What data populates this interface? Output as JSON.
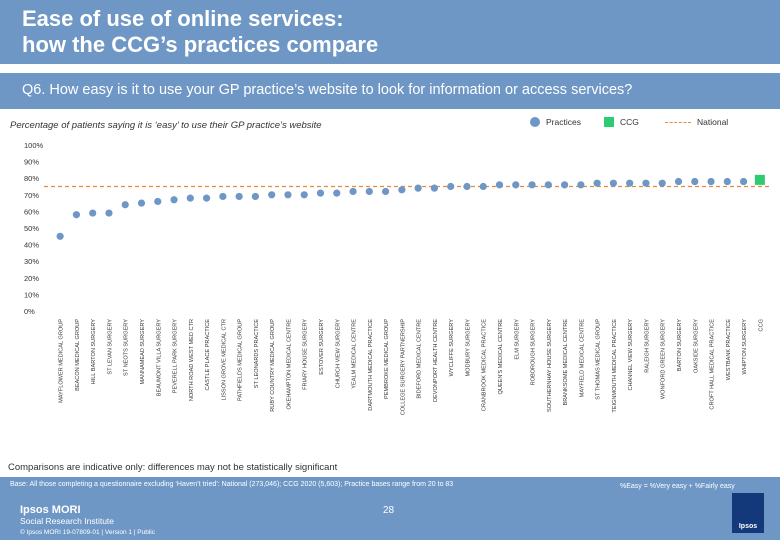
{
  "slide": {
    "title_line1": "Ease of use of online services:",
    "title_line2": "how the CCG’s practices compare",
    "question": "Q6. How easy is it to use your GP practice’s website to look for information or access services?",
    "subtitle": "Percentage of patients saying it is ‘easy’ to use their GP practice’s website",
    "note": "Comparisons are indicative only: differences may not be statistically significant",
    "base": "Base: All those completing a questionnaire excluding ‘Haven’t tried’: National (273,046); CCG 2020 (5,603); Practice bases range from 20 to 83",
    "easy_def": "%Easy = %Very easy + %Fairly easy",
    "page_number": "28",
    "brand_line1": "Ipsos MORI",
    "brand_line2": "Social Research Institute",
    "copyright": "© Ipsos MORI     19-07809-01 | Version 1 | Public",
    "logo_text": "Ipsos"
  },
  "legend": {
    "practices": "Practices",
    "ccg": "CCG",
    "national": "National"
  },
  "colors": {
    "header": "#6e97c6",
    "practice_point": "#6e97c6",
    "ccg_bar": "#2ecc71",
    "national_line": "#e48b3c"
  },
  "chart_data": {
    "type": "scatter",
    "ylim": [
      0,
      100
    ],
    "yticks": [
      "0%",
      "10%",
      "20%",
      "30%",
      "40%",
      "50%",
      "60%",
      "70%",
      "80%",
      "90%",
      "100%"
    ],
    "national": 75,
    "categories": [
      "MAYFLOWER MEDICAL GROUP",
      "BEACON MEDICAL GROUP",
      "HILL BARTON SURGERY",
      "ST LEVAN SURGERY",
      "ST NEOTS SURGERY",
      "MANNAMEAD SURGERY",
      "BEAUMONT VILLA SURGERY",
      "PEVERELL PARK SURGERY",
      "NORTH ROAD WEST MED CTR",
      "CASTLE PLACE PRACTICE",
      "LISSON GROVE MEDICAL CTR",
      "PATHFIELDS MEDICAL GROUP",
      "ST LEONARDS PRACTICE",
      "RUBY COUNTRY MEDICAL GROUP",
      "OKEHAMPTON MEDICAL CENTRE",
      "FRIARY HOUSE SURGERY",
      "ESTOVER SURGERY",
      "CHURCH VIEW SURGERY",
      "YEALM MEDICAL CENTRE",
      "DARTMOUTH MEDICAL PRACTICE",
      "PEMBROKE MEDICAL GROUP",
      "COLLEGE SURGERY PARTNERSHIP",
      "BIDEFORD MEDICAL CENTRE",
      "DEVONPORT HEALTH CENTRE",
      "WYCLIFFE SURGERY",
      "MODBURY SURGERY",
      "CRANBROOK MEDICAL PRACTICE",
      "QUEEN'S MEDICAL CENTRE",
      "ELM SURGERY",
      "ROBOROUGH SURGERY",
      "SOUTHERNHAY HOUSE SURGERY",
      "BRANKSOME MEDICAL CENTRE",
      "MAYFIELD MEDICAL CENTRE",
      "ST THOMAS MEDICAL GROUP",
      "TEIGNMOUTH MEDICAL PRACTICE",
      "CHANNEL VIEW SURGERY",
      "RALEIGH SURGERY",
      "WONFORD GREEN SURGERY",
      "BARTON SURGERY",
      "OAKSIDE SURGERY",
      "CROFT HALL MEDICAL PRACTICE",
      "WESTBANK PRACTICE",
      "WHIPTON SURGERY",
      "CCG"
    ],
    "values": [
      45,
      58,
      59,
      59,
      64,
      65,
      66,
      67,
      68,
      68,
      69,
      69,
      69,
      70,
      70,
      70,
      71,
      71,
      72,
      72,
      72,
      73,
      74,
      74,
      75,
      75,
      75,
      76,
      76,
      76,
      76,
      76,
      76,
      77,
      77,
      77,
      77,
      77,
      78,
      78,
      78,
      78,
      78,
      79
    ]
  }
}
